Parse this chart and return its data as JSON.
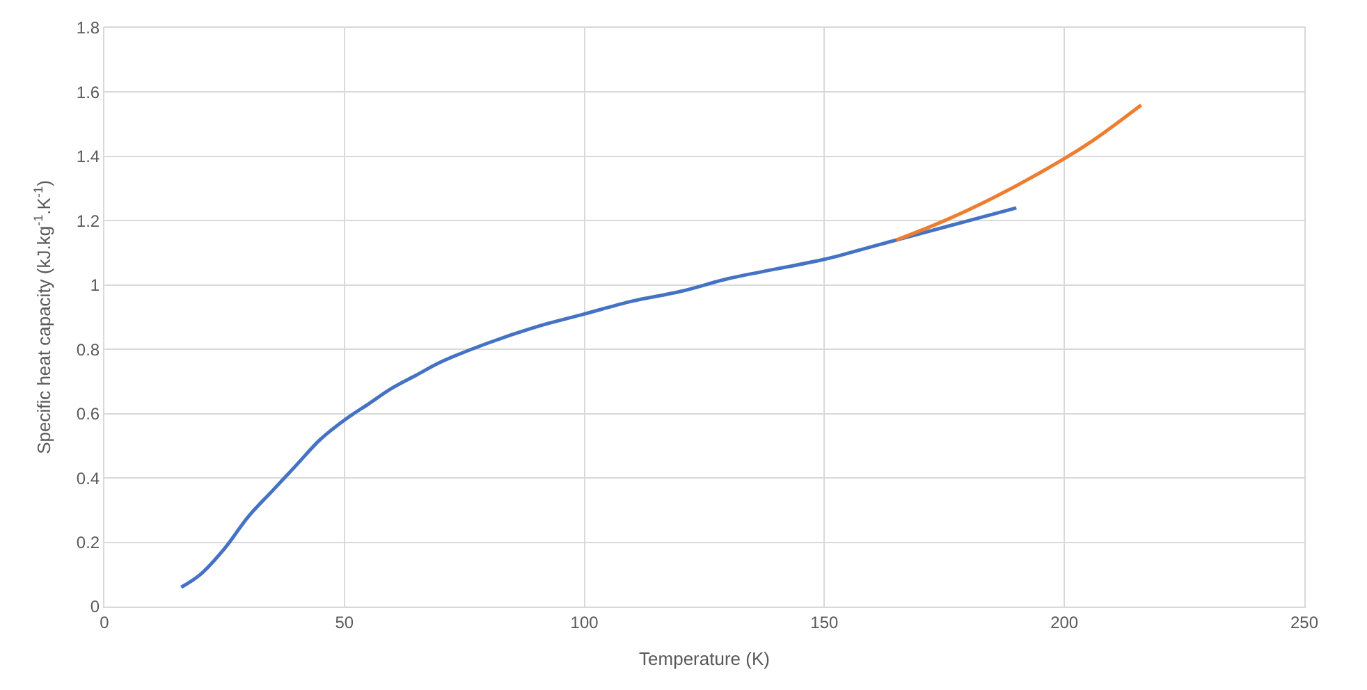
{
  "chart_data": {
    "type": "line",
    "xlabel": "Temperature (K)",
    "ylabel": "Specific heat capacity (kJ.kg$^{-1}$.K$^{-1}$)",
    "xlim": [
      0,
      250
    ],
    "xticks": [
      0,
      50,
      100,
      150,
      200,
      250
    ],
    "ylim": [
      0,
      1.8
    ],
    "yticks": [
      0,
      0.2,
      0.4,
      0.6,
      0.8,
      1,
      1.2,
      1.4,
      1.6,
      1.8
    ],
    "grid": true,
    "marker": "none",
    "line_style": "solid",
    "series": [
      {
        "color": "#4472c4",
        "x": [
          16,
          20,
          25,
          30,
          35,
          40,
          45,
          50,
          55,
          60,
          65,
          70,
          80,
          90,
          100,
          110,
          120,
          130,
          140,
          150,
          160,
          165,
          170,
          180,
          190
        ],
        "values": [
          0.06,
          0.1,
          0.18,
          0.28,
          0.36,
          0.44,
          0.52,
          0.58,
          0.63,
          0.68,
          0.72,
          0.76,
          0.82,
          0.87,
          0.91,
          0.95,
          0.98,
          1.02,
          1.05,
          1.08,
          1.12,
          1.14,
          1.16,
          1.2,
          1.24
        ]
      },
      {
        "color": "#ed7d31",
        "x": [
          165,
          175,
          185,
          195,
          205,
          216
        ],
        "values": [
          1.14,
          1.2,
          1.27,
          1.35,
          1.44,
          1.56
        ]
      }
    ]
  }
}
